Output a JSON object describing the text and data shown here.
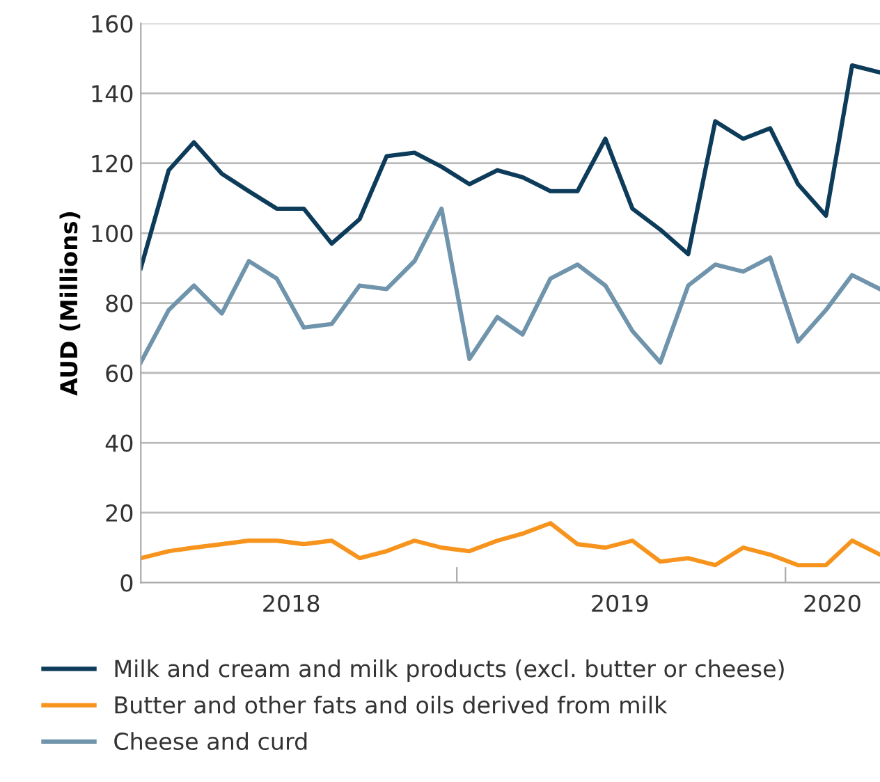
{
  "chart_data": {
    "type": "line",
    "ylabel": "AUD (Millions)",
    "x": [
      "2018-01-15",
      "2018-02-15",
      "2018-03-15",
      "2018-04-15",
      "2018-05-15",
      "2018-06-15",
      "2018-07-15",
      "2018-08-15",
      "2018-09-15",
      "2018-10-15",
      "2018-11-15",
      "2018-12-15",
      "2019-01-15",
      "2019-02-15",
      "2019-03-15",
      "2019-04-15",
      "2019-05-15",
      "2019-06-15",
      "2019-07-15",
      "2019-08-15",
      "2019-09-15",
      "2019-10-15",
      "2019-11-15",
      "2019-12-15",
      "2020-01-15",
      "2020-02-15",
      "2020-03-15",
      "2020-04-15"
    ],
    "series": [
      {
        "name": "Milk and cream and milk products (excl. butter or cheese)",
        "color": "#0d3b5a",
        "values": [
          90,
          118,
          126,
          117,
          112,
          107,
          107,
          97,
          104,
          122,
          123,
          119,
          114,
          118,
          116,
          112,
          112,
          127,
          107,
          101,
          94,
          132,
          127,
          130,
          114,
          105,
          148,
          146
        ]
      },
      {
        "name": "Butter and other fats and oils derived from milk",
        "color": "#f7941d",
        "values": [
          7,
          9,
          10,
          11,
          12,
          12,
          11,
          12,
          7,
          9,
          12,
          10,
          9,
          12,
          14,
          17,
          11,
          10,
          12,
          6,
          7,
          5,
          10,
          8,
          5,
          5,
          12,
          8
        ]
      },
      {
        "name": "Cheese and curd",
        "color": "#6f94ac",
        "values": [
          63,
          78,
          85,
          77,
          92,
          87,
          73,
          74,
          85,
          84,
          92,
          107,
          64,
          76,
          71,
          87,
          91,
          85,
          72,
          63,
          85,
          91,
          89,
          93,
          69,
          78,
          88,
          84
        ]
      }
    ],
    "xlim": [
      "2018-01-15",
      "2020-04-15"
    ],
    "xticks": [
      {
        "value": "2018-07-01",
        "label": "2018"
      },
      {
        "value": "2019-01-01",
        "label": null
      },
      {
        "value": "2019-07-01",
        "label": "2019"
      },
      {
        "value": "2020-01-01",
        "label": null
      },
      {
        "value": "2020-02-22",
        "label": "2020"
      }
    ],
    "ylim": [
      0,
      160
    ],
    "yticks": [
      0,
      20,
      40,
      60,
      80,
      100,
      120,
      140,
      160
    ],
    "grid": "y",
    "legend": "bottom",
    "marker": "none",
    "line_style": "solid"
  }
}
